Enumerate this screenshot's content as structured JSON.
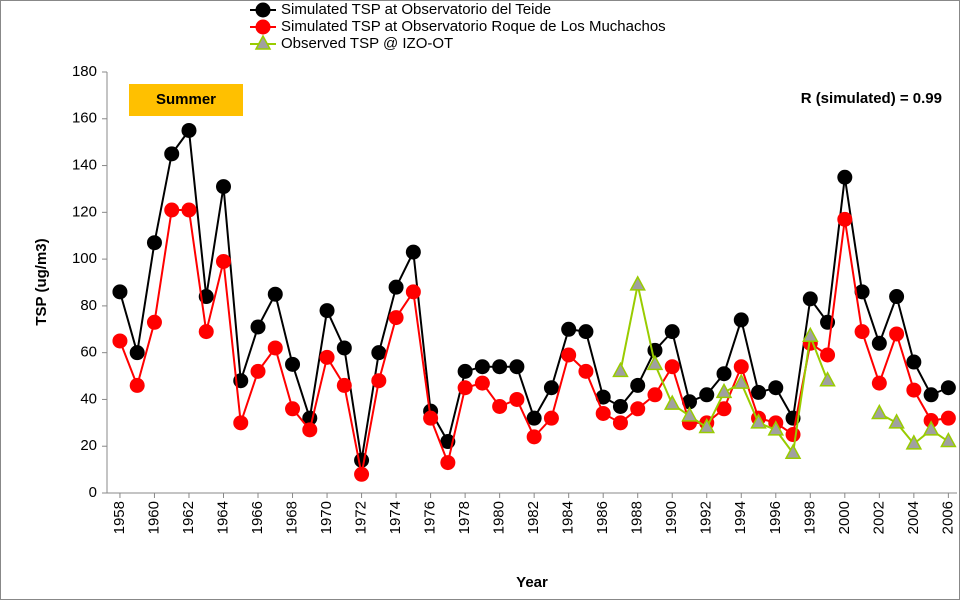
{
  "chart_data": {
    "type": "line",
    "y_label": "TSP (ug/m3)",
    "x_label": "Year",
    "annotations": [
      "Summer",
      "R (simulated) = 0.99"
    ],
    "x": [
      1958,
      1959,
      1960,
      1961,
      1962,
      1963,
      1964,
      1965,
      1966,
      1967,
      1968,
      1969,
      1970,
      1971,
      1972,
      1973,
      1974,
      1975,
      1976,
      1977,
      1978,
      1979,
      1980,
      1981,
      1982,
      1983,
      1984,
      1985,
      1986,
      1987,
      1988,
      1989,
      1990,
      1991,
      1992,
      1993,
      1994,
      1995,
      1996,
      1997,
      1998,
      1999,
      2000,
      2001,
      2002,
      2003,
      2004,
      2005,
      2006
    ],
    "xlim": [
      1957.25,
      2006.5
    ],
    "xticks": [
      1958,
      1960,
      1962,
      1964,
      1966,
      1968,
      1970,
      1972,
      1974,
      1976,
      1978,
      1980,
      1982,
      1984,
      1986,
      1988,
      1990,
      1992,
      1994,
      1996,
      1998,
      2000,
      2002,
      2004,
      2006
    ],
    "ylim": [
      0,
      180
    ],
    "yticks": [
      0,
      20,
      40,
      60,
      80,
      100,
      120,
      140,
      160,
      180
    ],
    "grid": false,
    "series": [
      {
        "name": "Simulated TSP at Observatorio del Teide",
        "color": "#000000",
        "marker": "circle",
        "values": [
          86,
          60,
          107,
          145,
          155,
          84,
          131,
          48,
          71,
          85,
          55,
          32,
          78,
          62,
          14,
          60,
          88,
          103,
          35,
          22,
          52,
          54,
          54,
          54,
          32,
          45,
          70,
          69,
          41,
          37,
          46,
          61,
          69,
          39,
          42,
          51,
          74,
          43,
          45,
          32,
          83,
          73,
          135,
          86,
          64,
          84,
          56,
          42,
          45
        ]
      },
      {
        "name": "Simulated TSP at Observatorio Roque de Los Muchachos",
        "color": "#ff0000",
        "marker": "circle",
        "values": [
          65,
          46,
          73,
          121,
          121,
          69,
          99,
          30,
          52,
          62,
          36,
          27,
          58,
          46,
          8,
          48,
          75,
          86,
          32,
          13,
          45,
          47,
          37,
          40,
          24,
          32,
          59,
          52,
          34,
          30,
          36,
          42,
          54,
          30,
          30,
          36,
          54,
          32,
          30,
          25,
          64,
          59,
          117,
          69,
          47,
          68,
          44,
          31,
          32
        ]
      },
      {
        "name": "Observed TSP @ IZO-OT",
        "color": "#99cc00",
        "marker": "triangle",
        "values": [
          null,
          null,
          null,
          null,
          null,
          null,
          null,
          null,
          null,
          null,
          null,
          null,
          null,
          null,
          null,
          null,
          null,
          null,
          null,
          null,
          null,
          null,
          null,
          null,
          null,
          null,
          null,
          null,
          null,
          52,
          89,
          55,
          38,
          33,
          28,
          43,
          47,
          30,
          27,
          17,
          67,
          48,
          null,
          null,
          34,
          30,
          21,
          27,
          22
        ]
      }
    ]
  }
}
